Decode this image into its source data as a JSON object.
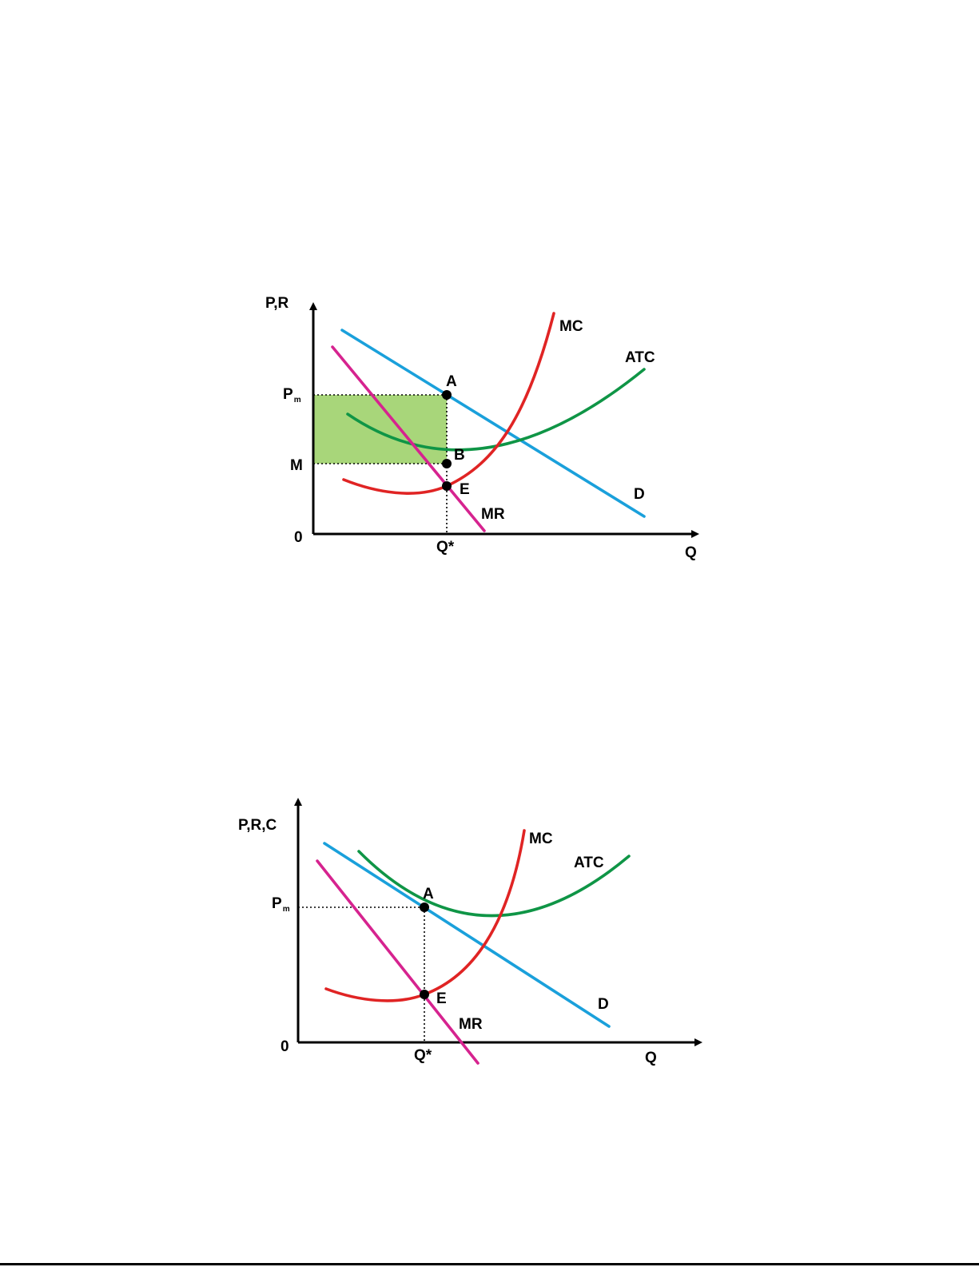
{
  "colors": {
    "demand": "#1aa0db",
    "marginal_revenue": "#d6238f",
    "marginal_cost": "#e02424",
    "average_total_cost": "#0f9546",
    "profit_area": "#a8d67a",
    "axis": "#000000"
  },
  "diagram_top": {
    "y_axis_label": "P,R",
    "x_axis_label": "Q",
    "origin_label": "0",
    "price_label_main": "P",
    "price_label_sub": "m",
    "cost_level_label": "M",
    "quantity_label": "Q*",
    "points": {
      "a": "A",
      "b": "B",
      "e": "E"
    },
    "curves": {
      "mc": "MC",
      "atc": "ATC",
      "d": "D",
      "mr": "MR"
    },
    "shaded_region": "supernormal profit rectangle between Pm and M"
  },
  "diagram_bottom": {
    "y_axis_label": "P,R,C",
    "x_axis_label": "Q",
    "origin_label": "0",
    "price_label_main": "P",
    "price_label_sub": "m",
    "quantity_label": "Q*",
    "points": {
      "a": "A",
      "e": "E"
    },
    "curves": {
      "mc": "MC",
      "atc": "ATC",
      "d": "D",
      "mr": "MR"
    }
  }
}
